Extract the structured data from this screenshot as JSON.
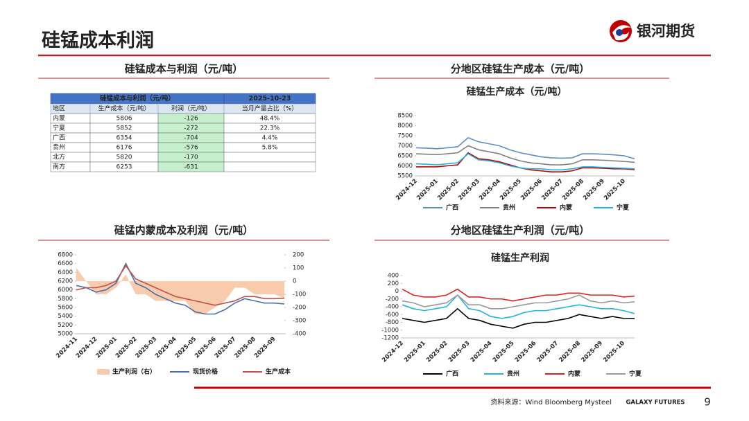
{
  "header": {
    "title": "硅锰成本利润",
    "logo": "银河期货"
  },
  "panels": [
    "硅锰成本与利润（元/吨）",
    "分地区硅锰生产成本（元/吨）",
    "硅锰内蒙成本及利润（元/吨）",
    "分地区硅锰生产利润（元/吨）"
  ],
  "table": {
    "title": "硅锰成本与利润（元/吨）",
    "date": "2025-10-23",
    "columns": [
      "地区",
      "生产成本（元/吨）",
      "利润（元/吨）",
      "当月产量占比（%）"
    ],
    "rows": [
      [
        "内蒙",
        "5806",
        "-126",
        "48.4%"
      ],
      [
        "宁夏",
        "5852",
        "-272",
        "22.3%"
      ],
      [
        "广西",
        "6354",
        "-704",
        "4.4%"
      ],
      [
        "贵州",
        "6176",
        "-576",
        "5.8%"
      ],
      [
        "北方",
        "5820",
        "-170"
      ],
      [
        "南方",
        "6253",
        "-631"
      ]
    ]
  },
  "chart_data": [
    {
      "type": "line",
      "title": "硅锰生产成本（元/吨）",
      "categories": [
        "2024-12",
        null,
        "2025-01",
        null,
        "2025-02",
        null,
        "2025-03",
        null,
        "2025-04",
        null,
        "2025-05",
        null,
        "2025-06",
        null,
        "2025-07",
        null,
        "2025-08",
        null,
        "2025-09",
        null,
        "2025-10",
        null
      ],
      "ylim": [
        5500,
        8500
      ],
      "yticks": [
        5500,
        6000,
        6500,
        7000,
        7500,
        8000,
        8500
      ],
      "series": [
        {
          "name": "广西",
          "color": "#5b8fc9",
          "values": [
            6900,
            6880,
            6850,
            6900,
            6950,
            7400,
            7200,
            7100,
            7000,
            6800,
            6650,
            6550,
            6450,
            6400,
            6380,
            6400,
            6600,
            6600,
            6580,
            6550,
            6500,
            6354
          ]
        },
        {
          "name": "贵州",
          "color": "#7f7f7f",
          "values": [
            6600,
            6580,
            6560,
            6600,
            6650,
            7000,
            6800,
            6700,
            6600,
            6400,
            6250,
            6150,
            6100,
            6050,
            6050,
            6100,
            6300,
            6300,
            6280,
            6250,
            6220,
            6176
          ]
        },
        {
          "name": "内蒙",
          "color": "#c00000",
          "values": [
            5950,
            5950,
            5950,
            6000,
            6050,
            6650,
            6350,
            6300,
            6200,
            6050,
            5900,
            5800,
            5750,
            5700,
            5700,
            5750,
            5900,
            5900,
            5880,
            5850,
            5850,
            5806
          ]
        },
        {
          "name": "宁夏",
          "color": "#1fb3e0",
          "values": [
            6100,
            6080,
            6050,
            6100,
            6150,
            6600,
            6300,
            6250,
            6150,
            6000,
            5900,
            5850,
            5850,
            5800,
            5800,
            5850,
            5950,
            5950,
            5920,
            5900,
            5880,
            5852
          ]
        }
      ]
    },
    {
      "type": "combo",
      "categories": [
        "2024-11",
        null,
        "2024-12",
        null,
        "2025-01",
        null,
        "2025-02",
        null,
        "2025-03",
        null,
        "2025-04",
        null,
        "2025-05",
        null,
        "2025-06",
        null,
        "2025-07",
        null,
        "2025-08",
        null,
        "2025-09",
        null
      ],
      "ylim": [
        5000,
        6800
      ],
      "yticks": [
        5000,
        5200,
        5400,
        5600,
        5800,
        6000,
        6200,
        6400,
        6600,
        6800
      ],
      "y2lim": [
        -400,
        200
      ],
      "y2ticks": [
        -400,
        -300,
        -200,
        -100,
        0,
        100,
        200
      ],
      "series": [
        {
          "name": "生产利润（右）",
          "type": "area",
          "axis": "y2",
          "color": "#f8cbad",
          "values": [
            100,
            0,
            -100,
            -100,
            -50,
            50,
            -100,
            -100,
            -150,
            -150,
            -150,
            -150,
            -250,
            -250,
            -200,
            -150,
            -50,
            -50,
            -100,
            -100,
            -100,
            -130
          ]
        },
        {
          "name": "现货价格",
          "type": "line",
          "color": "#4a70a8",
          "values": [
            6100,
            6050,
            5950,
            6000,
            6150,
            6600,
            6150,
            6050,
            5900,
            5800,
            5700,
            5650,
            5500,
            5450,
            5450,
            5550,
            5700,
            5800,
            5750,
            5700,
            5700,
            5680
          ]
        },
        {
          "name": "生产成本",
          "type": "line",
          "color": "#c0504d",
          "values": [
            6000,
            6050,
            6050,
            6100,
            6200,
            6550,
            6250,
            6150,
            6050,
            5950,
            5850,
            5800,
            5750,
            5700,
            5650,
            5700,
            5750,
            5850,
            5850,
            5800,
            5800,
            5810
          ]
        }
      ]
    },
    {
      "type": "line",
      "title": "硅锰生产利润",
      "categories": [
        "2024-12",
        null,
        "2025-01",
        null,
        "2025-02",
        null,
        "2025-03",
        null,
        "2025-04",
        null,
        "2025-05",
        null,
        "2025-06",
        null,
        "2025-07",
        null,
        "2025-08",
        null,
        "2025-09",
        null,
        "2025-10",
        null
      ],
      "ylim": [
        -1200,
        400
      ],
      "yticks": [
        -1200,
        -1000,
        -800,
        -600,
        -400,
        -200,
        0,
        200,
        400
      ],
      "series": [
        {
          "name": "广西",
          "color": "#000000",
          "values": [
            -700,
            -750,
            -800,
            -750,
            -700,
            -450,
            -700,
            -750,
            -850,
            -900,
            -950,
            -850,
            -800,
            -800,
            -750,
            -700,
            -600,
            -650,
            -700,
            -650,
            -700,
            -704
          ]
        },
        {
          "name": "贵州",
          "color": "#1fb3e0",
          "values": [
            -350,
            -450,
            -500,
            -450,
            -400,
            -100,
            -450,
            -500,
            -650,
            -700,
            -650,
            -550,
            -500,
            -500,
            -450,
            -400,
            -350,
            -400,
            -450,
            -450,
            -500,
            -576
          ]
        },
        {
          "name": "内蒙",
          "color": "#e02020",
          "values": [
            50,
            -100,
            -150,
            -150,
            -100,
            50,
            -150,
            -150,
            -200,
            -200,
            -250,
            -200,
            -150,
            -100,
            -100,
            -50,
            -50,
            -100,
            -100,
            -100,
            -150,
            -126
          ]
        },
        {
          "name": "宁夏",
          "color": "#999999",
          "values": [
            -250,
            -300,
            -400,
            -350,
            -300,
            -100,
            -350,
            -350,
            -450,
            -450,
            -400,
            -350,
            -300,
            -300,
            -250,
            -200,
            -100,
            -250,
            -300,
            -250,
            -300,
            -272
          ]
        }
      ]
    }
  ],
  "footer": {
    "source": "资料来源：Wind Bloomberg Mysteel",
    "brand": "GALAXY FUTURES",
    "page": 9
  }
}
